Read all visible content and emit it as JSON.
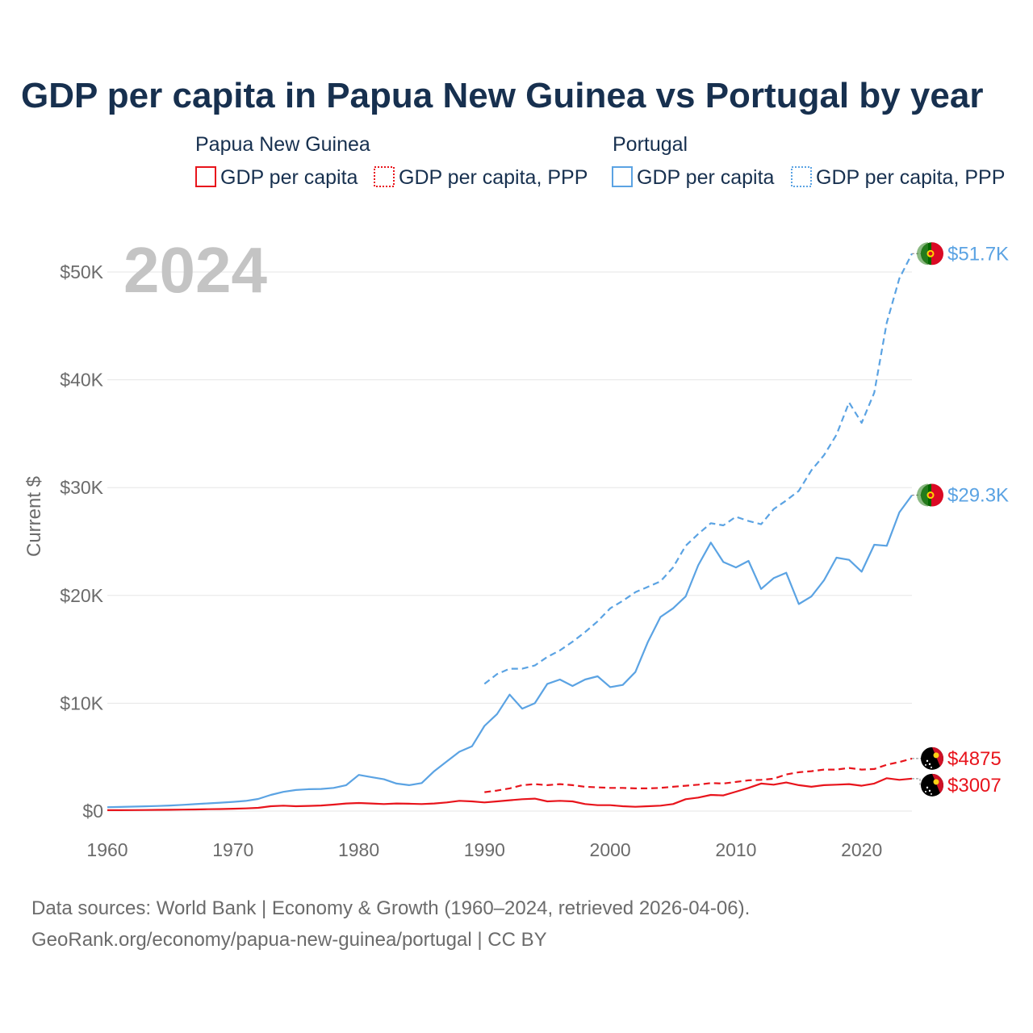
{
  "title": "GDP per capita in Papua New Guinea vs Portugal by year",
  "legend": {
    "groups": [
      {
        "country": "Papua New Guinea",
        "color": "#e8141c",
        "items": [
          {
            "label": "GDP per capita",
            "style": "solid"
          },
          {
            "label": "GDP per capita, PPP",
            "style": "dotted"
          }
        ]
      },
      {
        "country": "Portugal",
        "color": "#5ba3e3",
        "items": [
          {
            "label": "GDP per capita",
            "style": "solid"
          },
          {
            "label": "GDP per capita, PPP",
            "style": "dotted"
          }
        ]
      }
    ]
  },
  "year_watermark": "2024",
  "source_line1": "Data sources: World Bank | Economy & Growth (1960–2024, retrieved 2026-04-06).",
  "source_line2": "GeoRank.org/economy/papua-new-guinea/portugal | CC BY",
  "chart_data": {
    "type": "line",
    "title": "GDP per capita in Papua New Guinea vs Portugal by year",
    "xlabel": "",
    "ylabel": "Current $",
    "xlim": [
      1960,
      2024
    ],
    "ylim": [
      0,
      52000
    ],
    "x_ticks": [
      1960,
      1970,
      1980,
      1990,
      2000,
      2010,
      2020
    ],
    "x_tick_labels": [
      "1960",
      "1970",
      "1980",
      "1990",
      "2000",
      "2010",
      "2020"
    ],
    "y_ticks": [
      0,
      10000,
      20000,
      30000,
      40000,
      50000
    ],
    "y_tick_labels": [
      "$0",
      "$10K",
      "$20K",
      "$30K",
      "$40K",
      "$50K"
    ],
    "grid": true,
    "series": [
      {
        "name": "Portugal GDP per capita, PPP",
        "country": "Portugal",
        "color": "#5ba3e3",
        "dash": "dashed",
        "end_label": "$51.7K",
        "x": [
          1990,
          1991,
          1992,
          1993,
          1994,
          1995,
          1996,
          1997,
          1998,
          1999,
          2000,
          2001,
          2002,
          2003,
          2004,
          2005,
          2006,
          2007,
          2008,
          2009,
          2010,
          2011,
          2012,
          2013,
          2014,
          2015,
          2016,
          2017,
          2018,
          2019,
          2020,
          2021,
          2022,
          2023,
          2024
        ],
        "values": [
          11800,
          12700,
          13200,
          13200,
          13500,
          14300,
          14900,
          15700,
          16600,
          17600,
          18800,
          19500,
          20300,
          20800,
          21300,
          22600,
          24600,
          25700,
          26700,
          26500,
          27300,
          26900,
          26600,
          28000,
          28800,
          29700,
          31600,
          33000,
          34900,
          37900,
          36000,
          38800,
          45300,
          49400,
          51700
        ]
      },
      {
        "name": "Portugal GDP per capita",
        "country": "Portugal",
        "color": "#5ba3e3",
        "dash": "solid",
        "end_label": "$29.3K",
        "x": [
          1960,
          1961,
          1962,
          1963,
          1964,
          1965,
          1966,
          1967,
          1968,
          1969,
          1970,
          1971,
          1972,
          1973,
          1974,
          1975,
          1976,
          1977,
          1978,
          1979,
          1980,
          1981,
          1982,
          1983,
          1984,
          1985,
          1986,
          1987,
          1988,
          1989,
          1990,
          1991,
          1992,
          1993,
          1994,
          1995,
          1996,
          1997,
          1998,
          1999,
          2000,
          2001,
          2002,
          2003,
          2004,
          2005,
          2006,
          2007,
          2008,
          2009,
          2010,
          2011,
          2012,
          2013,
          2014,
          2015,
          2016,
          2017,
          2018,
          2019,
          2020,
          2021,
          2022,
          2023,
          2024
        ],
        "values": [
          360,
          380,
          410,
          440,
          470,
          520,
          580,
          640,
          710,
          780,
          850,
          940,
          1120,
          1500,
          1780,
          1950,
          2030,
          2050,
          2150,
          2400,
          3350,
          3150,
          2950,
          2550,
          2400,
          2600,
          3700,
          4600,
          5500,
          6000,
          7900,
          9000,
          10800,
          9500,
          10000,
          11800,
          12200,
          11600,
          12200,
          12500,
          11500,
          11700,
          12900,
          15700,
          18000,
          18800,
          19900,
          22800,
          24900,
          23100,
          22600,
          23200,
          20600,
          21600,
          22100,
          19200,
          19900,
          21400,
          23500,
          23300,
          22200,
          24700,
          24600,
          27700,
          29300
        ]
      },
      {
        "name": "Papua New Guinea GDP per capita, PPP",
        "country": "Papua New Guinea",
        "color": "#e8141c",
        "dash": "dashed",
        "end_label": "$4875",
        "x": [
          1990,
          1991,
          1992,
          1993,
          1994,
          1995,
          1996,
          1997,
          1998,
          1999,
          2000,
          2001,
          2002,
          2003,
          2004,
          2005,
          2006,
          2007,
          2008,
          2009,
          2010,
          2011,
          2012,
          2013,
          2014,
          2015,
          2016,
          2017,
          2018,
          2019,
          2020,
          2021,
          2022,
          2023,
          2024
        ],
        "values": [
          1750,
          1900,
          2100,
          2400,
          2500,
          2400,
          2500,
          2400,
          2250,
          2200,
          2150,
          2150,
          2100,
          2100,
          2150,
          2250,
          2350,
          2450,
          2600,
          2550,
          2700,
          2850,
          2900,
          3000,
          3400,
          3600,
          3700,
          3850,
          3850,
          4000,
          3850,
          3900,
          4300,
          4550,
          4875
        ]
      },
      {
        "name": "Papua New Guinea GDP per capita",
        "country": "Papua New Guinea",
        "color": "#e8141c",
        "dash": "solid",
        "end_label": "$3007",
        "x": [
          1960,
          1961,
          1962,
          1963,
          1964,
          1965,
          1966,
          1967,
          1968,
          1969,
          1970,
          1971,
          1972,
          1973,
          1974,
          1975,
          1976,
          1977,
          1978,
          1979,
          1980,
          1981,
          1982,
          1983,
          1984,
          1985,
          1986,
          1987,
          1988,
          1989,
          1990,
          1991,
          1992,
          1993,
          1994,
          1995,
          1996,
          1997,
          1998,
          1999,
          2000,
          2001,
          2002,
          2003,
          2004,
          2005,
          2006,
          2007,
          2008,
          2009,
          2010,
          2011,
          2012,
          2013,
          2014,
          2015,
          2016,
          2017,
          2018,
          2019,
          2020,
          2021,
          2022,
          2023,
          2024
        ],
        "values": [
          80,
          85,
          90,
          100,
          110,
          120,
          135,
          150,
          170,
          190,
          220,
          250,
          300,
          450,
          500,
          450,
          480,
          520,
          600,
          700,
          750,
          700,
          650,
          700,
          680,
          650,
          700,
          800,
          950,
          900,
          800,
          900,
          1000,
          1100,
          1150,
          900,
          950,
          900,
          650,
          550,
          550,
          450,
          400,
          450,
          500,
          650,
          1100,
          1250,
          1500,
          1450,
          1800,
          2150,
          2550,
          2450,
          2650,
          2400,
          2250,
          2400,
          2450,
          2500,
          2350,
          2550,
          3050,
          2900,
          3007
        ]
      }
    ]
  }
}
